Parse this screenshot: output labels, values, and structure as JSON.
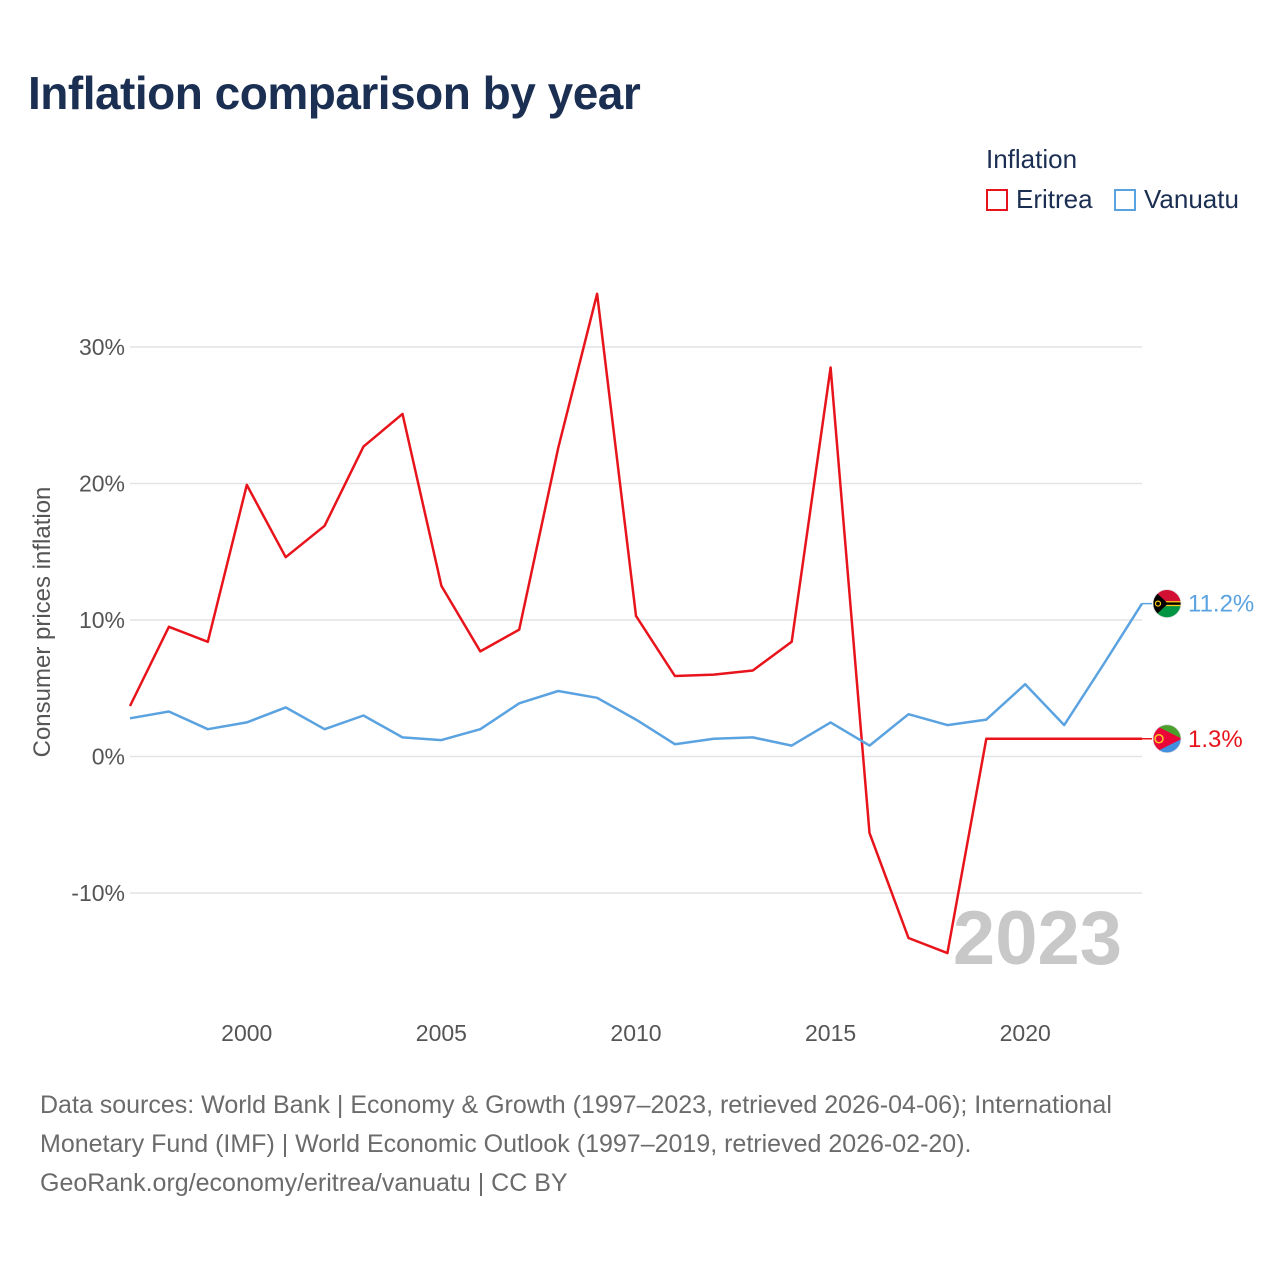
{
  "title": "Inflation comparison by year",
  "legend": {
    "title": "Inflation",
    "items": [
      {
        "name": "Eritrea",
        "color": "#e8141c"
      },
      {
        "name": "Vanuatu",
        "color": "#5ba3e0"
      }
    ]
  },
  "year_watermark": "2023",
  "sources": {
    "line1": "Data sources: World Bank | Economy & Growth (1997–2023, retrieved 2026-04-06); International",
    "line2": "Monetary Fund (IMF) | World Economic Outlook (1997–2019, retrieved 2026-02-20).",
    "line3": "GeoRank.org/economy/eritrea/vanuatu | CC BY"
  },
  "chart_data": {
    "type": "line",
    "title": "Inflation comparison by year",
    "xlabel": "",
    "ylabel": "Consumer prices inflation",
    "xlim": [
      1997,
      2023
    ],
    "ylim": [
      -17,
      38
    ],
    "x_ticks": [
      2000,
      2005,
      2010,
      2015,
      2020
    ],
    "y_ticks": [
      -10,
      0,
      10,
      20,
      30
    ],
    "y_tick_labels": [
      "-10%",
      "0%",
      "10%",
      "20%",
      "30%"
    ],
    "grid": true,
    "legend_position": "top-right",
    "x": [
      1997,
      1998,
      1999,
      2000,
      2001,
      2002,
      2003,
      2004,
      2005,
      2006,
      2007,
      2008,
      2009,
      2010,
      2011,
      2012,
      2013,
      2014,
      2015,
      2016,
      2017,
      2018,
      2019,
      2020,
      2021,
      2022,
      2023
    ],
    "series": [
      {
        "name": "Eritrea",
        "color": "#e8141c",
        "end_label": "1.3%",
        "values": [
          3.7,
          9.5,
          8.4,
          19.9,
          14.6,
          16.9,
          22.7,
          25.1,
          12.5,
          7.7,
          9.3,
          22.6,
          33.9,
          10.3,
          5.9,
          6.0,
          6.3,
          8.4,
          28.5,
          -5.6,
          -13.3,
          -14.4,
          1.3,
          1.3,
          1.3,
          1.3,
          1.3
        ]
      },
      {
        "name": "Vanuatu",
        "color": "#5ba3e0",
        "end_label": "11.2%",
        "values": [
          2.8,
          3.3,
          2.0,
          2.5,
          3.6,
          2.0,
          3.0,
          1.4,
          1.2,
          2.0,
          3.9,
          4.8,
          4.3,
          2.7,
          0.9,
          1.3,
          1.4,
          0.8,
          2.5,
          0.8,
          3.1,
          2.3,
          2.7,
          5.3,
          2.3,
          6.7,
          11.2
        ]
      }
    ]
  }
}
